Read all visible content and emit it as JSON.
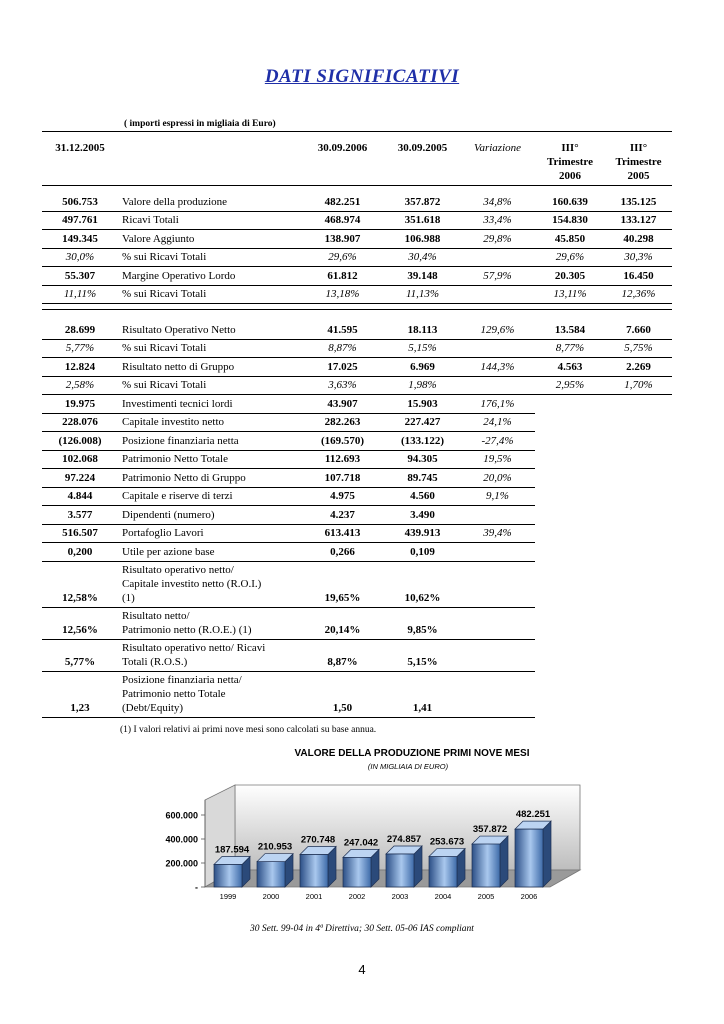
{
  "title": "DATI SIGNIFICATIVI",
  "note": "( importi espressi in migliaia di Euro)",
  "table": {
    "header": [
      "31.12.2005",
      null,
      "30.09.2006",
      "30.09.2005",
      "Variazione",
      [
        "III°",
        "Trimestre",
        "2006"
      ],
      [
        "III°",
        "Trimestre",
        "2005"
      ]
    ],
    "rows": [
      [
        "506.753",
        "Valore della produzione",
        "482.251",
        "357.872",
        "34,8%",
        "160.639",
        "135.125"
      ],
      [
        "497.761",
        "Ricavi Totali",
        "468.974",
        "351.618",
        "33,4%",
        "154.830",
        "133.127"
      ],
      [
        "149.345",
        "Valore Aggiunto",
        "138.907",
        "106.988",
        "29,8%",
        "45.850",
        "40.298"
      ],
      [
        "30,0%",
        "% sui Ricavi Totali",
        "29,6%",
        "30,4%",
        null,
        "29,6%",
        "30,3%"
      ],
      [
        "55.307",
        "Margine Operativo Lordo",
        "61.812",
        "39.148",
        "57,9%",
        "20.305",
        "16.450"
      ],
      [
        "11,11%",
        "% sui Ricavi Totali",
        "13,18%",
        "11,13%",
        null,
        "13,11%",
        "12,36%"
      ],
      [
        "28.699",
        "Risultato Operativo Netto",
        "41.595",
        "18.113",
        "129,6%",
        "13.584",
        "7.660"
      ],
      [
        "5,77%",
        "% sui Ricavi Totali",
        "8,87%",
        "5,15%",
        null,
        "8,77%",
        "5,75%"
      ],
      [
        "12.824",
        "Risultato netto di Gruppo",
        "17.025",
        "6.969",
        "144,3%",
        "4.563",
        "2.269"
      ],
      [
        "2,58%",
        "% sui Ricavi Totali",
        "3,63%",
        "1,98%",
        null,
        "2,95%",
        "1,70%"
      ],
      [
        "19.975",
        "Investimenti tecnici lordi",
        "43.907",
        "15.903",
        "176,1%"
      ],
      [
        "228.076",
        "Capitale investito netto",
        "282.263",
        "227.427",
        "24,1%"
      ],
      [
        "(126.008)",
        "Posizione finanziaria netta",
        "(169.570)",
        "(133.122)",
        "-27,4%"
      ],
      [
        "102.068",
        "Patrimonio Netto Totale",
        "112.693",
        "94.305",
        "19,5%"
      ],
      [
        "97.224",
        "Patrimonio Netto di Gruppo",
        "107.718",
        "89.745",
        "20,0%"
      ],
      [
        "4.844",
        "Capitale e riserve di terzi",
        "4.975",
        "4.560",
        "9,1%"
      ],
      [
        "3.577",
        "Dipendenti (numero)",
        "4.237",
        "3.490",
        null
      ],
      [
        "516.507",
        "Portafoglio Lavori",
        "613.413",
        "439.913",
        "39,4%"
      ],
      [
        "0,200",
        "Utile per azione base",
        "0,266",
        "0,109",
        null
      ],
      [
        "12,58%",
        [
          "Risultato operativo netto/",
          "Capitale investito netto (R.O.I.)",
          "(1)"
        ],
        "19,65%",
        "10,62%",
        null
      ],
      [
        "12,56%",
        [
          "Risultato netto/",
          "Patrimonio netto (R.O.E.)   (1)"
        ],
        "20,14%",
        "9,85%",
        null
      ],
      [
        "5,77%",
        [
          "Risultato operativo netto/ Ricavi",
          "Totali (R.O.S.)"
        ],
        "8,87%",
        "5,15%",
        null
      ],
      [
        "1,23",
        [
          "Posizione finanziaria netta/",
          "Patrimonio netto Totale",
          "(Debt/Equity)"
        ],
        "1,50",
        "1,41",
        null
      ]
    ]
  },
  "footnote": "(1) I valori relativi ai primi nove mesi sono calcolati su base annua.",
  "chart_data": {
    "type": "bar3d",
    "title": "VALORE DELLA PRODUZIONE PRIMI NOVE MESI",
    "subtitle": "(IN MIGLIAIA DI EURO)",
    "categories": [
      "1999",
      "2000",
      "2001",
      "2002",
      "2003",
      "2004",
      "2005",
      "2006"
    ],
    "values": [
      187594,
      210953,
      270748,
      247042,
      274857,
      253673,
      357872,
      482251
    ],
    "value_labels": [
      "187.594",
      "210.953",
      "270.748",
      "247.042",
      "274.857",
      "253.673",
      "357.872",
      "482.251"
    ],
    "color": "#6f9fd8",
    "ylim": [
      0,
      800000
    ],
    "yticks": [
      {
        "value": 0,
        "label": "-"
      },
      {
        "value": 200000,
        "label": "200.000"
      },
      {
        "value": 400000,
        "label": "400.000"
      },
      {
        "value": 600000,
        "label": "600.000"
      }
    ]
  },
  "caption": "30 Sett. 99-04 in 4ª Direttiva;  30 Sett. 05-06 IAS compliant",
  "page_number": "4"
}
